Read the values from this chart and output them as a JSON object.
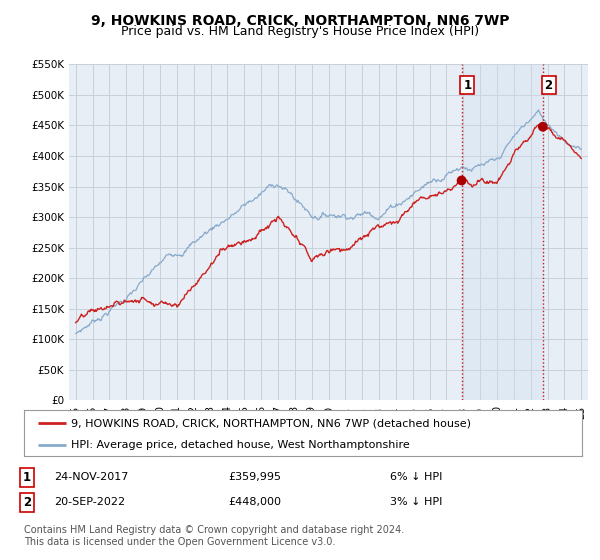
{
  "title": "9, HOWKINS ROAD, CRICK, NORTHAMPTON, NN6 7WP",
  "subtitle": "Price paid vs. HM Land Registry's House Price Index (HPI)",
  "ylim": [
    0,
    550000
  ],
  "yticks": [
    0,
    50000,
    100000,
    150000,
    200000,
    250000,
    300000,
    350000,
    400000,
    450000,
    500000,
    550000
  ],
  "ytick_labels": [
    "£0",
    "£50K",
    "£100K",
    "£150K",
    "£200K",
    "£250K",
    "£300K",
    "£350K",
    "£400K",
    "£450K",
    "£500K",
    "£550K"
  ],
  "background_color": "#ffffff",
  "plot_bg_color": "#e8eef5",
  "grid_color": "#c8d0d8",
  "shade_color": "#d0e0f0",
  "sale1_date": 2017.9,
  "sale1_price": 359995,
  "sale1_label": "1",
  "sale1_hpi_pct": "6% ↓ HPI",
  "sale1_date_str": "24-NOV-2017",
  "sale2_date": 2022.72,
  "sale2_price": 448000,
  "sale2_label": "2",
  "sale2_hpi_pct": "3% ↓ HPI",
  "sale2_date_str": "20-SEP-2022",
  "vline_color": "#cc0000",
  "vline_style": ":",
  "property_line_color": "#cc2222",
  "hpi_line_color": "#88aacc",
  "legend_label_property": "9, HOWKINS ROAD, CRICK, NORTHAMPTON, NN6 7WP (detached house)",
  "legend_label_hpi": "HPI: Average price, detached house, West Northamptonshire",
  "footnote": "Contains HM Land Registry data © Crown copyright and database right 2024.\nThis data is licensed under the Open Government Licence v3.0.",
  "marker_color": "#aa0000",
  "title_fontsize": 10,
  "subtitle_fontsize": 9,
  "tick_fontsize": 7.5,
  "legend_fontsize": 8,
  "annotation_fontsize": 8,
  "footnote_fontsize": 7
}
